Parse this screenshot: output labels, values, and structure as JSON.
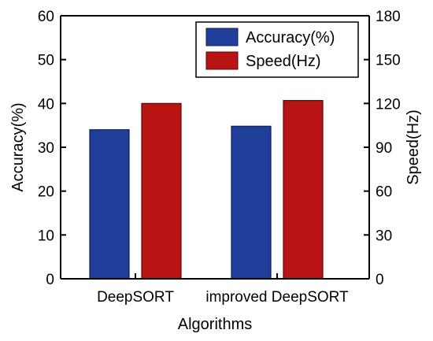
{
  "colors": {
    "accuracy": "#1f3f9a",
    "accuracy_stroke": "#101c55",
    "speed": "#b81414",
    "speed_stroke": "#5a0a0a",
    "axis": "#000000"
  },
  "chart_data": {
    "type": "bar",
    "categories": [
      "DeepSORT",
      "improved DeepSORT"
    ],
    "xlabel": "Algorithms",
    "ylabel_left": "Accuracy(%)",
    "ylabel_right": "Speed(Hz)",
    "ylim_left": [
      0,
      60
    ],
    "ylim_right": [
      0,
      180
    ],
    "yticks_left": [
      0,
      10,
      20,
      30,
      40,
      50,
      60
    ],
    "yticks_right": [
      0,
      30,
      60,
      90,
      120,
      150,
      180
    ],
    "grid": false,
    "legend_position": "top-right",
    "series": [
      {
        "name": "Accuracy(%)",
        "axis": "left",
        "color_key": "accuracy",
        "values": [
          34,
          34.8
        ]
      },
      {
        "name": "Speed(Hz)",
        "axis": "right",
        "color_key": "speed",
        "values": [
          120,
          122
        ]
      }
    ]
  }
}
